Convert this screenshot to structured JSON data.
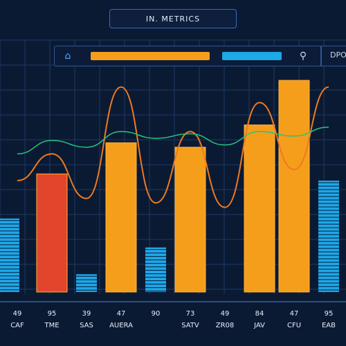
{
  "title": "IN. METRICS",
  "toolbar": {
    "home_icon": "home-icon",
    "pin_icon": "location-pin-icon",
    "right_label": "DPOD",
    "bar_orange_color": "#f59e1b",
    "bar_blue_color": "#1da8e6"
  },
  "chart_data": {
    "type": "bar",
    "title": "IN. METRICS",
    "categories": [
      "CAF",
      "TME",
      "SAS",
      "AUERA",
      "",
      "SATV",
      "ZR08",
      "JAV",
      "CFU",
      "EAB"
    ],
    "value_labels": [
      "49",
      "95",
      "39",
      "47",
      "90",
      "73",
      "49",
      "84",
      "47",
      "95"
    ],
    "ylim": [
      0,
      100
    ],
    "grid": true,
    "series": [
      {
        "type": "bar",
        "color": "#f59e1b",
        "values": [
          null,
          53,
          null,
          67,
          null,
          65,
          null,
          75,
          95,
          null
        ]
      },
      {
        "type": "bar",
        "color": "#1ea7e8",
        "values": [
          33,
          19,
          8,
          20,
          20,
          13,
          null,
          null,
          8,
          50
        ]
      },
      {
        "type": "line",
        "color": "#f07a1e",
        "values": [
          50,
          62,
          42,
          92,
          40,
          72,
          38,
          85,
          55,
          92
        ]
      },
      {
        "type": "line",
        "color": "#26c47e",
        "values": [
          62,
          68,
          65,
          72,
          69,
          71,
          66,
          72,
          70,
          74
        ]
      }
    ],
    "colors": {
      "background": "#0b1a33",
      "grid": "#1d3a66",
      "orange_bar": "#f59e1b",
      "red_bar": "#e2452b",
      "blue_bar": "#1ea7e8",
      "orange_line": "#f07a1e",
      "green_line": "#26c47e",
      "text": "#e9eef8"
    }
  }
}
